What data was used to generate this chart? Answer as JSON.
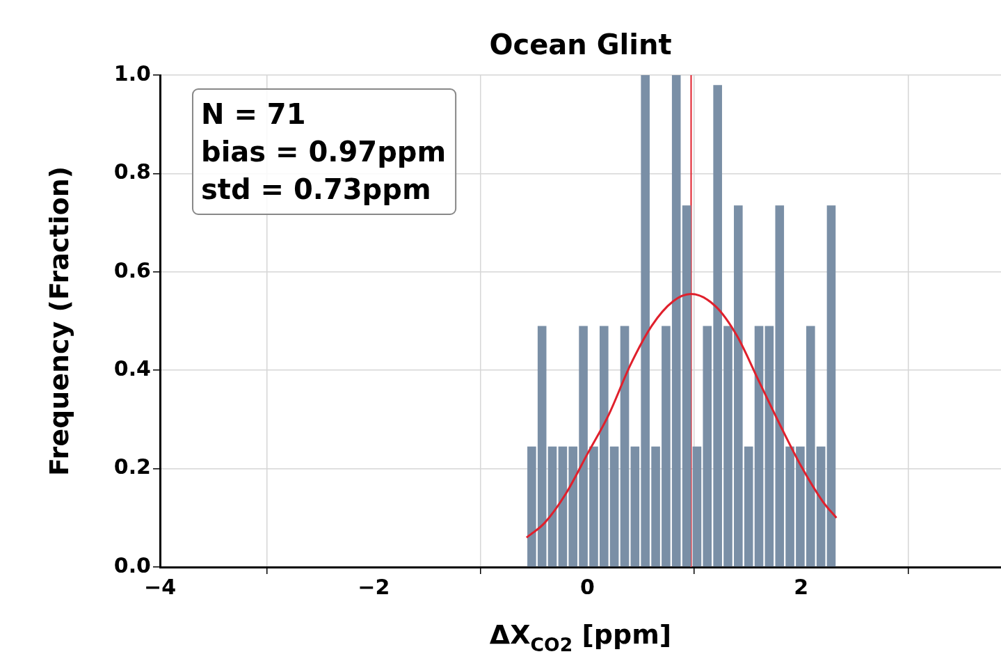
{
  "chart_data": {
    "type": "histogram",
    "title": "Ocean Glint",
    "xlabel": "ΔX$_{CO2}$ [ppm]",
    "ylabel": "Frequency (Fraction)",
    "bins": [
      -0.57,
      -0.473,
      -0.377,
      -0.28,
      -0.183,
      -0.087,
      0.01,
      0.107,
      0.203,
      0.3,
      0.397,
      0.493,
      0.59,
      0.687,
      0.783,
      0.88,
      0.977,
      1.073,
      1.17,
      1.267,
      1.363,
      1.46,
      1.557,
      1.653,
      1.75,
      1.847,
      1.943,
      2.04,
      2.137,
      2.233,
      2.33
    ],
    "values": [
      0.245,
      0.49,
      0.245,
      0.245,
      0.245,
      0.49,
      0.245,
      0.49,
      0.245,
      0.49,
      0.245,
      1.0,
      0.245,
      0.49,
      1.0,
      0.735,
      0.245,
      0.49,
      0.98,
      0.49,
      0.735,
      0.245,
      0.49,
      0.49,
      0.735,
      0.245,
      0.245,
      0.49,
      0.245,
      0.735
    ],
    "color": "#7a8fa6",
    "series": [
      {
        "type": "line",
        "color": "#e0202c",
        "x": [
          -0.57,
          -0.4,
          -0.2,
          0,
          0.2,
          0.4,
          0.6,
          0.8,
          0.97,
          1.2,
          1.4,
          1.6,
          1.8,
          2.0,
          2.2,
          2.33
        ],
        "values": [
          0.06,
          0.09,
          0.15,
          0.23,
          0.31,
          0.41,
          0.49,
          0.54,
          0.555,
          0.53,
          0.47,
          0.38,
          0.29,
          0.205,
          0.134,
          0.1
        ]
      }
    ],
    "ref_lines": [
      {
        "axis": "x",
        "value": 0.97,
        "color": "#e0202c"
      }
    ],
    "annotations": [
      "N = 71",
      "bias = 0.97ppm",
      "std = 0.73ppm"
    ],
    "xlim": [
      -4,
      3.87
    ],
    "ylim": [
      0,
      1.0
    ],
    "xticks": [
      {
        "value": -4,
        "label": "−4"
      },
      {
        "value": -2,
        "label": "−2"
      },
      0,
      2
    ],
    "yticks": [
      {
        "value": 0,
        "label": "0.0"
      },
      0.2,
      0.4,
      0.6,
      0.8,
      {
        "value": 1,
        "label": "1.0"
      }
    ],
    "grid": true,
    "legend": false
  }
}
